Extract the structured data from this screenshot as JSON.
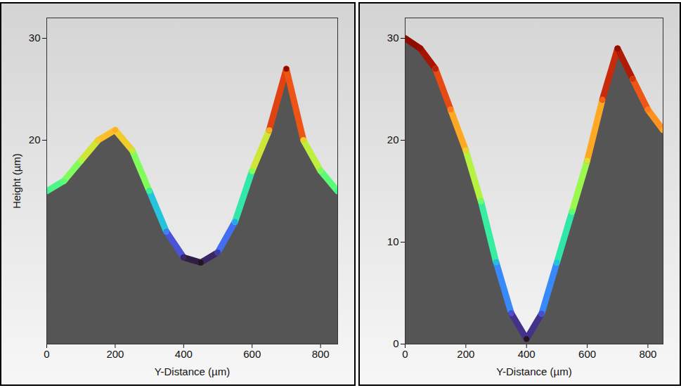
{
  "chart_data": [
    {
      "type": "area",
      "x": [
        0,
        50,
        100,
        150,
        200,
        250,
        300,
        350,
        400,
        450,
        500,
        550,
        600,
        650,
        700,
        750,
        800,
        850
      ],
      "values": [
        15,
        16,
        18,
        20,
        21,
        19,
        15,
        11,
        8.5,
        8,
        9,
        12,
        17,
        21,
        27,
        20,
        17,
        15
      ],
      "xlim": [
        0,
        850
      ],
      "xticks": [
        0,
        200,
        400,
        600,
        800
      ],
      "ylim": [
        0,
        32
      ],
      "yticks": [
        20,
        30
      ],
      "x_label": "Y-Distance (µm)",
      "y_label": "Height (µm)",
      "color": "turbo",
      "grid": false
    },
    {
      "type": "area",
      "x": [
        0,
        50,
        100,
        150,
        200,
        250,
        300,
        350,
        400,
        450,
        500,
        550,
        600,
        650,
        700,
        750,
        800,
        850
      ],
      "values": [
        30,
        29,
        27,
        23,
        19,
        14,
        8,
        3,
        0.5,
        3,
        8,
        13,
        18,
        24,
        29,
        26,
        23,
        21
      ],
      "xlim": [
        0,
        850
      ],
      "xticks": [
        0,
        200,
        400,
        600,
        800
      ],
      "ylim": [
        0,
        32
      ],
      "yticks": [
        0,
        10,
        20,
        30
      ],
      "x_label": "Y-Distance (µm)",
      "color": "turbo",
      "grid": false
    }
  ]
}
